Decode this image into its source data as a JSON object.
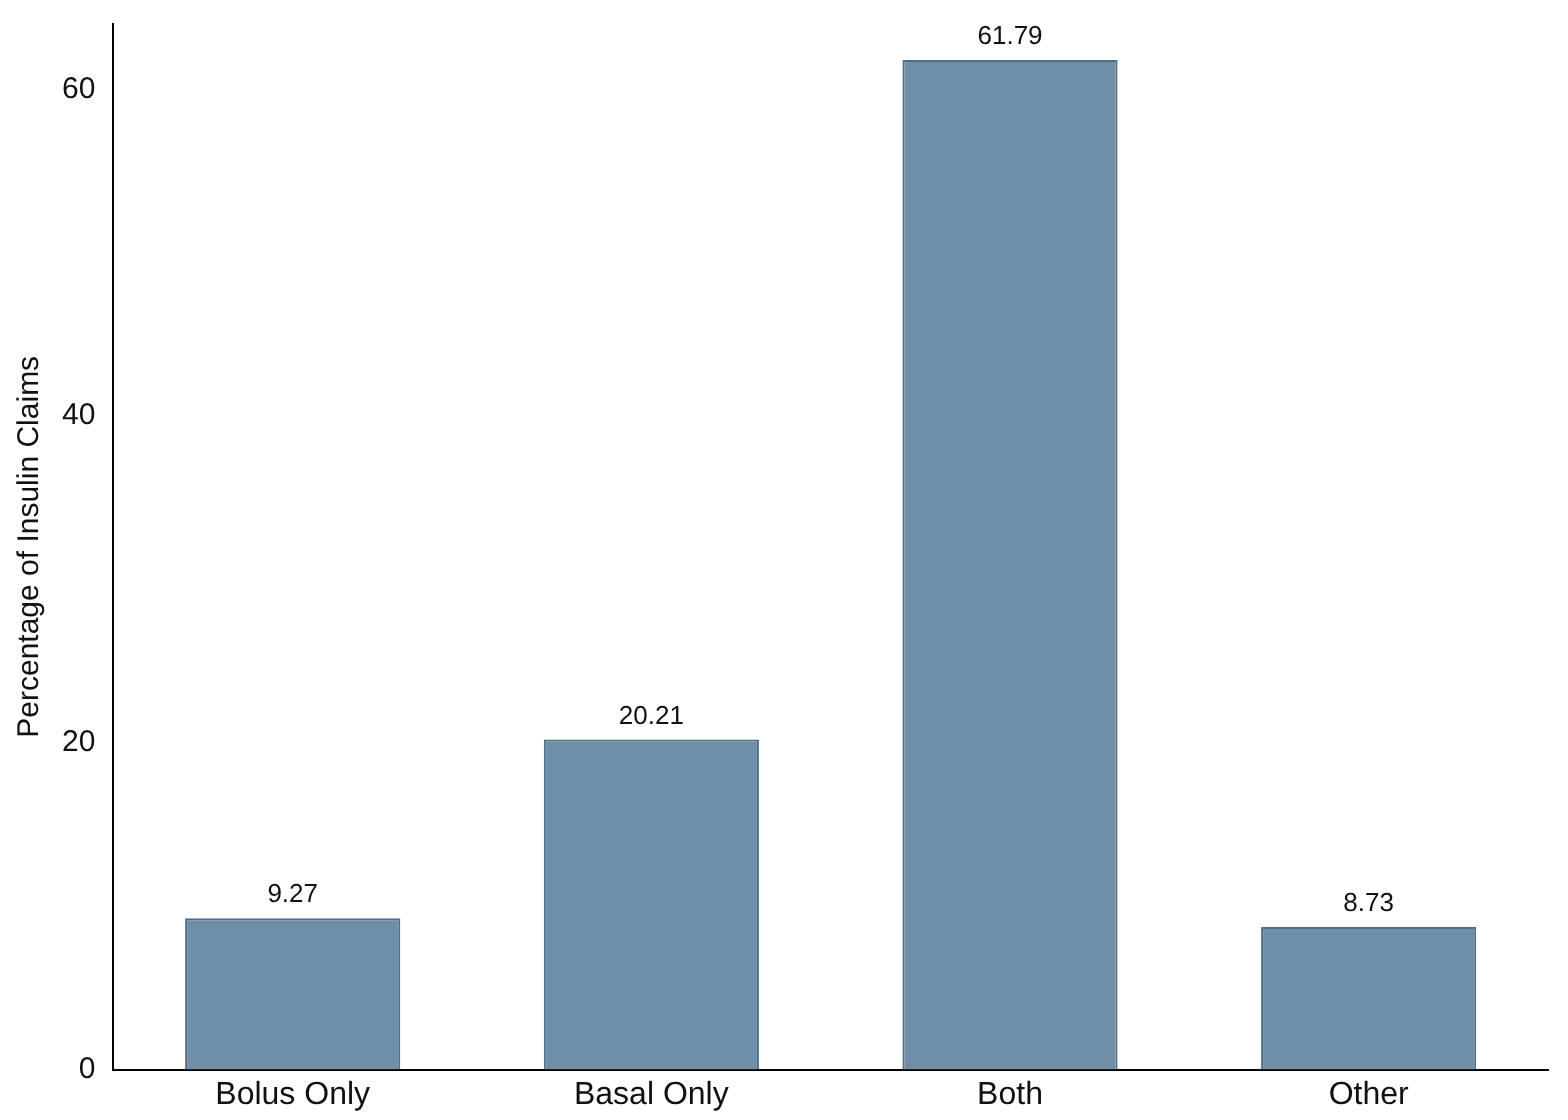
{
  "chart_data": {
    "type": "bar",
    "ylabel": "Percentage of Insulin Claims",
    "categories": [
      "Bolus Only",
      "Basal Only",
      "Both",
      "Other"
    ],
    "values": [
      9.27,
      20.21,
      61.79,
      8.73
    ],
    "color": "#6f8fa9",
    "ylim": [
      0,
      64
    ],
    "yticks": [
      0,
      20,
      40,
      60
    ],
    "grid": false,
    "data_labels": true
  }
}
